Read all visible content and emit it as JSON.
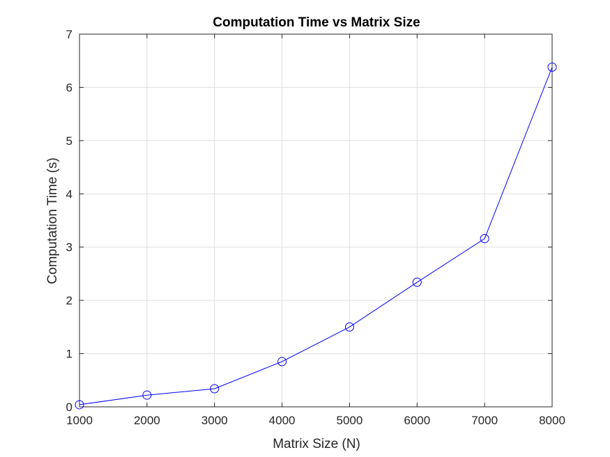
{
  "chart_data": {
    "type": "line",
    "title": "Computation Time vs Matrix Size",
    "xlabel": "Matrix Size (N)",
    "ylabel": "Computation Time (s)",
    "xlim": [
      1000,
      8000
    ],
    "ylim": [
      0,
      7
    ],
    "xticks": [
      "1000",
      "2000",
      "3000",
      "4000",
      "5000",
      "6000",
      "7000",
      "8000"
    ],
    "yticks": [
      "0",
      "1",
      "2",
      "3",
      "4",
      "5",
      "6",
      "7"
    ],
    "grid": true,
    "box": true,
    "marker": "circle-open",
    "series": [
      {
        "color": "#0000ff",
        "x": [
          1000,
          2000,
          3000,
          4000,
          5000,
          6000,
          7000,
          8000
        ],
        "y": [
          0.04,
          0.22,
          0.34,
          0.85,
          1.5,
          2.34,
          3.16,
          6.38
        ]
      }
    ]
  }
}
